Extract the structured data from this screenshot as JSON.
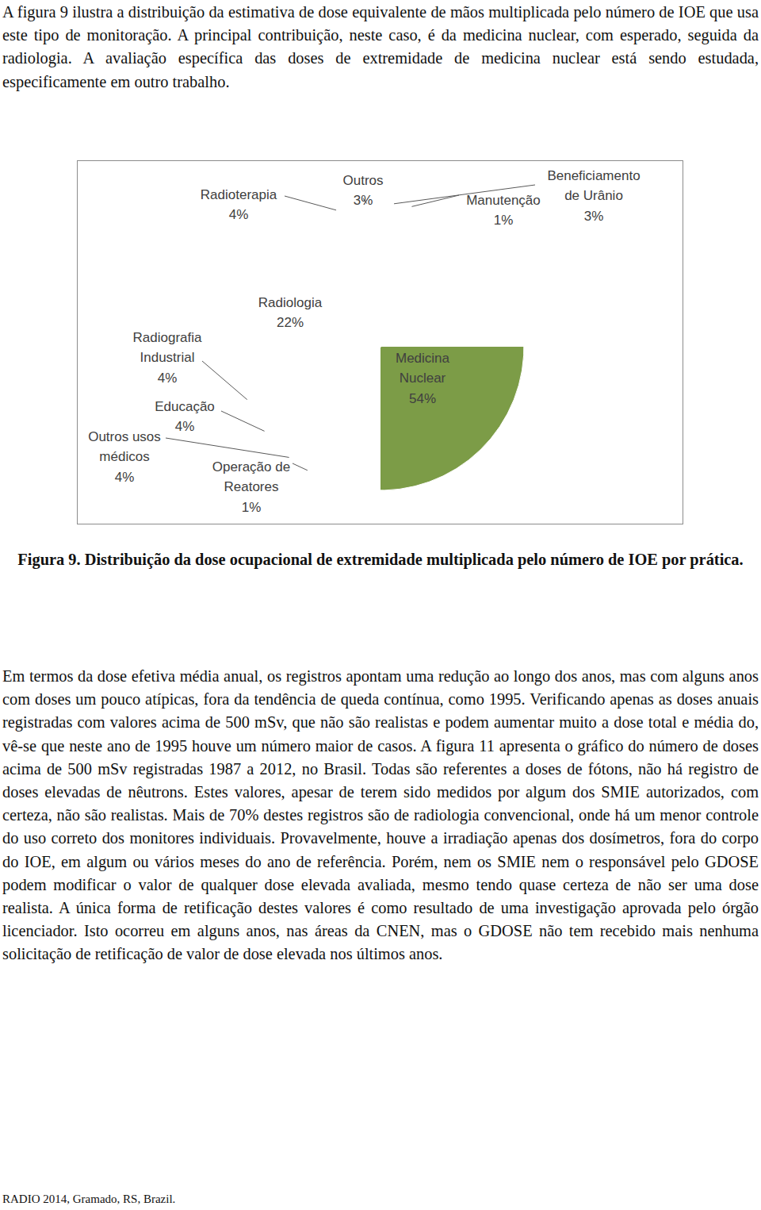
{
  "text": {
    "paragraphs": [
      "A figura 9 ilustra a distribuição da estimativa de dose equivalente de mãos multiplicada pelo número de IOE que usa este tipo de monitoração. A principal contribuição, neste caso, é da medicina nuclear, com esperado, seguida da radiologia. A avaliação específica das doses de extremidade de medicina nuclear está sendo estudada, especificamente em outro trabalho.",
      "Em termos da dose efetiva média anual, os registros apontam uma redução ao longo dos anos, mas com alguns anos com doses um pouco atípicas, fora da tendência de queda contínua, como 1995. Verificando apenas as doses anuais registradas com valores acima de 500 mSv, que não são realistas e podem aumentar muito a dose total e média do, vê-se que neste ano de 1995 houve um número maior de casos. A figura 11 apresenta o gráfico do número de doses acima de 500 mSv registradas 1987 a 2012, no Brasil. Todas são referentes a doses de fótons, não há registro de doses elevadas de nêutrons. Estes valores, apesar de terem sido medidos por algum dos SMIE autorizados, com certeza, não são realistas. Mais de 70% destes registros são de radiologia convencional, onde há um menor controle do uso correto dos monitores individuais. Provavelmente, houve a irradiação apenas dos dosímetros, fora do corpo do IOE, em algum ou vários meses do ano de referência. Porém, nem os SMIE nem o responsável pelo GDOSE podem modificar o valor de qualquer dose elevada avaliada, mesmo tendo quase certeza de não ser uma dose realista. A única forma de retificação destes valores é como resultado de uma investigação aprovada pelo órgão licenciador. Isto ocorreu em alguns anos, nas áreas da CNEN, mas o GDOSE não tem recebido mais nenhuma solicitação de retificação de valor de dose elevada nos últimos anos."
    ],
    "caption": "Figura 9. Distribuição da dose ocupacional de extremidade multiplicada pelo número de IOE por prática.",
    "footer": "RADIO 2014, Gramado, RS, Brazil."
  },
  "chart_data": {
    "type": "pie",
    "categories": [
      "Beneficiamento de Urânio",
      "Manutenção",
      "Medicina Nuclear",
      "Operação de Reatores",
      "Outros usos médicos",
      "Educação",
      "Radiografia Industrial",
      "Radiologia",
      "Radioterapia",
      "Outros"
    ],
    "values": [
      3,
      1,
      54,
      1,
      4,
      4,
      4,
      22,
      4,
      3
    ],
    "value_labels": [
      "3%",
      "1%",
      "54%",
      "1%",
      "4%",
      "4%",
      "4%",
      "22%",
      "4%",
      "3%"
    ],
    "colors": [
      "#3d67a3",
      "#b2423f",
      "#7c9c47",
      "#6a4f8c",
      "#e3802b",
      "#d24a47",
      "#8064a2",
      "#45a7c3",
      "#f79646",
      "#a9bad6"
    ],
    "data_labels": true
  }
}
